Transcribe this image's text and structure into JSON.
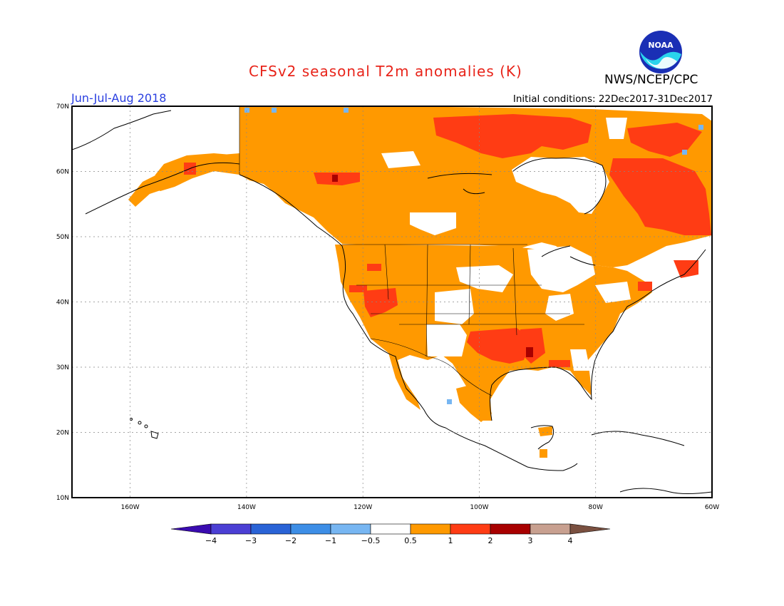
{
  "header": {
    "title": "CFSv2 seasonal T2m anomalies (K)",
    "agency": "NWS/NCEP/CPC",
    "period": "Jun-Jul-Aug 2018",
    "initial_conditions": "Initial conditions: 22Dec2017-31Dec2017",
    "logo_text": "NOAA"
  },
  "map": {
    "lat_labels": [
      "70N",
      "60N",
      "50N",
      "40N",
      "30N",
      "20N",
      "10N"
    ],
    "lon_labels": [
      "160W",
      "140W",
      "120W",
      "100W",
      "80W",
      "60W"
    ],
    "extent": {
      "lon": [
        -170,
        -60
      ],
      "lat": [
        10,
        70
      ]
    }
  },
  "colorbar": {
    "labels": [
      "-4",
      "-3",
      "-2",
      "-1",
      "-0.5",
      "0.5",
      "1",
      "2",
      "3",
      "4"
    ],
    "colors": [
      "#3a0bb0",
      "#4b3fd4",
      "#2a63d6",
      "#3d8ee6",
      "#77b6f2",
      "#ffffff",
      "#ff9900",
      "#ff3c14",
      "#a80000",
      "#c8a090",
      "#7a5040"
    ]
  },
  "colors": {
    "light": "#ff9900",
    "medium": "#ff3c14",
    "strong": "#a80000",
    "cold": "#77b6f2",
    "frame": "#000000",
    "grid": "#888888"
  }
}
